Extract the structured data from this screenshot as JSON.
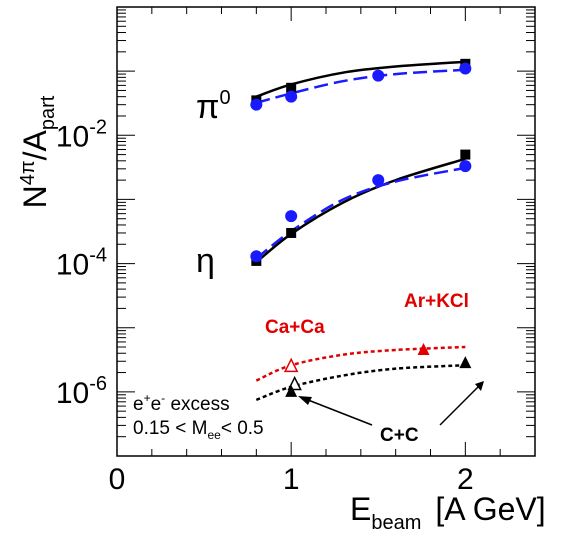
{
  "chart_data": {
    "type": "scatter",
    "y_scale": "log",
    "xlim": [
      0,
      2.4
    ],
    "ylim": [
      1e-07,
      1
    ],
    "grid": false,
    "ylabel": {
      "base": "N",
      "superscript": "4π",
      "slash": "/A",
      "subscript": "part"
    },
    "xlabel": {
      "base": "E",
      "subscript": "beam",
      "units": "[A GeV]"
    },
    "x_ticks": [
      {
        "value": 0,
        "label": "0"
      },
      {
        "value": 1,
        "label": "1"
      },
      {
        "value": 2,
        "label": "2"
      }
    ],
    "y_ticks": [
      {
        "value": 0.01,
        "base": "10",
        "exponent": "-2"
      },
      {
        "value": 0.0001,
        "base": "10",
        "exponent": "-4"
      },
      {
        "value": 1e-06,
        "base": "10",
        "exponent": "-6"
      }
    ],
    "series": [
      {
        "marker": "square",
        "color": "#000000",
        "x": [
          0.8,
          1.0,
          2.0
        ],
        "y": [
          0.035,
          0.055,
          0.13
        ]
      },
      {
        "marker": "circle",
        "color": "#1a1aff",
        "x": [
          0.8,
          1.0,
          1.5,
          2.0
        ],
        "y": [
          0.03,
          0.04,
          0.085,
          0.11
        ]
      },
      {
        "marker": "square",
        "color": "#000000",
        "x": [
          0.8,
          1.0,
          2.0
        ],
        "y": [
          0.00011,
          0.0003,
          0.005
        ]
      },
      {
        "marker": "circle",
        "color": "#1a1aff",
        "x": [
          0.8,
          1.0,
          1.5,
          2.0
        ],
        "y": [
          0.00013,
          0.00055,
          0.002,
          0.0033
        ]
      },
      {
        "marker": "triangle-open",
        "color": "#e00000",
        "x": [
          1.0
        ],
        "y": [
          2.5e-06
        ]
      },
      {
        "marker": "triangle",
        "color": "#e00000",
        "x": [
          1.76
        ],
        "y": [
          4.5e-06
        ]
      },
      {
        "marker": "triangle-open",
        "color": "#000000",
        "x": [
          1.02
        ],
        "y": [
          1.3e-06
        ]
      },
      {
        "marker": "triangle",
        "color": "#000000",
        "x": [
          1.0,
          2.0
        ],
        "y": [
          1e-06,
          2.8e-06
        ]
      }
    ],
    "curves": [
      {
        "color": "#000000",
        "style": "solid",
        "x": [
          0.8,
          1.0,
          1.3,
          1.6,
          2.0
        ],
        "y": [
          0.04,
          0.062,
          0.095,
          0.118,
          0.14
        ]
      },
      {
        "color": "#1a1aff",
        "style": "dashed",
        "x": [
          0.8,
          1.0,
          1.3,
          1.6,
          2.0
        ],
        "y": [
          0.032,
          0.045,
          0.07,
          0.09,
          0.105
        ]
      },
      {
        "color": "#000000",
        "style": "solid",
        "x": [
          0.8,
          1.0,
          1.3,
          1.6,
          2.0
        ],
        "y": [
          0.000105,
          0.00029,
          0.0009,
          0.002,
          0.0043
        ]
      },
      {
        "color": "#1a1aff",
        "style": "dashed",
        "x": [
          0.8,
          1.0,
          1.3,
          1.6,
          2.0
        ],
        "y": [
          0.00012,
          0.00032,
          0.001,
          0.0019,
          0.0031
        ]
      },
      {
        "color": "#e00000",
        "style": "dotted",
        "x": [
          0.8,
          1.0,
          1.3,
          1.6,
          2.0
        ],
        "y": [
          1.5e-06,
          2.6e-06,
          3.8e-06,
          4.5e-06,
          5e-06
        ]
      },
      {
        "color": "#000000",
        "style": "dotted",
        "x": [
          0.8,
          1.0,
          1.3,
          1.6,
          2.0
        ],
        "y": [
          7.5e-07,
          1.2e-06,
          1.8e-06,
          2.3e-06,
          2.6e-06
        ]
      }
    ],
    "annotations": {
      "pi0": "π",
      "pi0_sup": "0",
      "eta": "η",
      "ca_ca": "Ca+Ca",
      "ar_kcl": "Ar+KCl",
      "cc": "C+C",
      "excess_base": "e",
      "excess_sup1": "+",
      "excess_mid": "e",
      "excess_sup2": "-",
      "excess_tail": " excess",
      "mass_range_start": "0.15 < M",
      "mass_range_sub": "ee",
      "mass_range_end": "< 0.5"
    }
  }
}
